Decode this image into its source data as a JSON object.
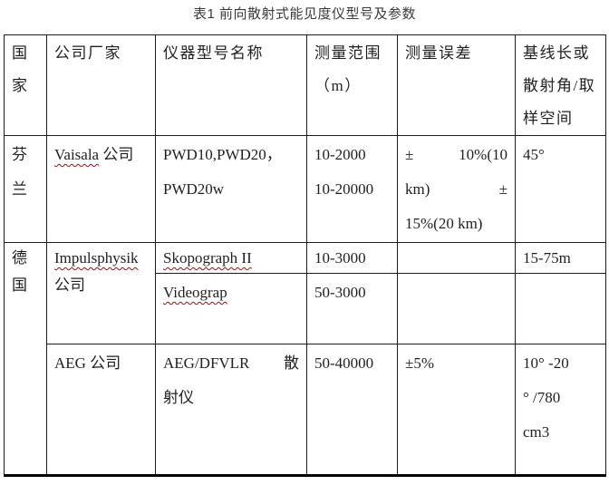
{
  "title": "表1 前向散射式能见度仪型号及参数",
  "table": {
    "headers": {
      "country": [
        "国",
        "家"
      ],
      "company": [
        "公司厂家"
      ],
      "model": [
        "仪器型号名称"
      ],
      "range": [
        "测量范围",
        "（m）"
      ],
      "error": [
        "测量误差"
      ],
      "baseline": [
        "基线长或",
        "散射角/取",
        "样空间"
      ]
    },
    "rows": {
      "finland": {
        "country": [
          "芬",
          "兰"
        ],
        "company_name": "Vaisala",
        "company_suffix": " 公司",
        "models": [
          "PWD10,PWD20，",
          "PWD20w"
        ],
        "range": [
          "10-2000",
          "10-20000"
        ],
        "error": [
          "±\t10%(10",
          "km)\t±",
          "15%(20 km)"
        ],
        "baseline": "45°"
      },
      "germany": {
        "country": [
          "德",
          "国"
        ],
        "impulsphysik": {
          "company_name": "Impulsphysik",
          "company_suffix": "公司",
          "skopograph": {
            "model": "Skopograph II",
            "range": [
              "10-3000"
            ],
            "baseline": "15-75m"
          },
          "videograp": {
            "model": "Videograp",
            "range": [
              "50-3000"
            ]
          }
        },
        "aeg": {
          "company": "AEG 公司",
          "model": [
            "AEG/DFVLR\t散",
            "射仪"
          ],
          "range": [
            "50-40000"
          ],
          "error": "±5%",
          "baseline": [
            "10° -20",
            "° /780",
            "cm3"
          ]
        }
      }
    }
  }
}
